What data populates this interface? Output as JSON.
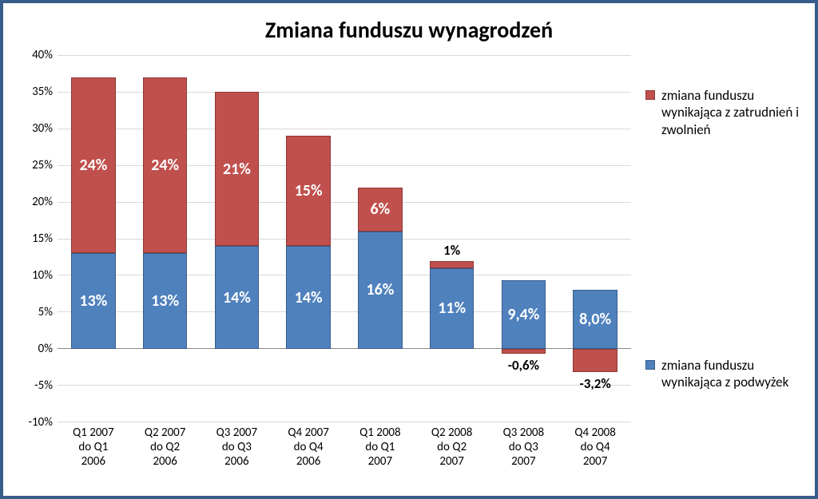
{
  "chart": {
    "type": "stacked-bar",
    "title": "Zmiana funduszu wynagrodzeń",
    "title_fontsize": 28,
    "axis_label_fontsize": 15,
    "data_label_fontsize_inside": 20,
    "data_label_fontsize_outside": 17,
    "background_color": "#ffffff",
    "frame_border_color": "#385d8a",
    "grid_color": "#d9d9d9",
    "axis_line_color": "#888888",
    "zero_line_color": "#888888",
    "ylim": [
      -10,
      40
    ],
    "ytick_step": 5,
    "y_tick_suffix": "%",
    "bar_width_ratio": 0.62,
    "categories": [
      "Q1 2007\ndo Q1\n2006",
      "Q2 2007\ndo Q2\n2006",
      "Q3 2007\ndo Q3\n2006",
      "Q4 2007\ndo Q4\n2006",
      "Q1 2008\ndo Q1\n2007",
      "Q2 2008\ndo Q2\n2007",
      "Q3 2008\ndo Q3\n2007",
      "Q4 2008\ndo Q4\n2007"
    ],
    "series": [
      {
        "id": "raises",
        "legend_label": "zmiana funduszu wynikająca z podwyżek",
        "fill_color": "#4f81bd",
        "border_color": "#385d8a",
        "label_color_inside": "#ffffff",
        "label_color_outside": "#000000",
        "values": [
          13,
          13,
          14,
          14,
          16,
          11,
          9.4,
          8.0
        ],
        "value_labels": [
          "13%",
          "13%",
          "14%",
          "14%",
          "16%",
          "11%",
          "9,4%",
          "8,0%"
        ]
      },
      {
        "id": "hiring",
        "legend_label": "zmiana funduszu wynikająca z zatrudnień i zwolnień",
        "fill_color": "#c0504d",
        "border_color": "#8c3836",
        "label_color_inside": "#ffffff",
        "label_color_outside": "#000000",
        "values": [
          24,
          24,
          21,
          15,
          6,
          1,
          -0.6,
          -3.2
        ],
        "value_labels": [
          "24%",
          "24%",
          "21%",
          "15%",
          "6%",
          "1%",
          "-0,6%",
          "-3,2%"
        ]
      }
    ],
    "legend": {
      "position": "right",
      "font_size": 17,
      "order": [
        "hiring",
        "raises"
      ]
    }
  }
}
